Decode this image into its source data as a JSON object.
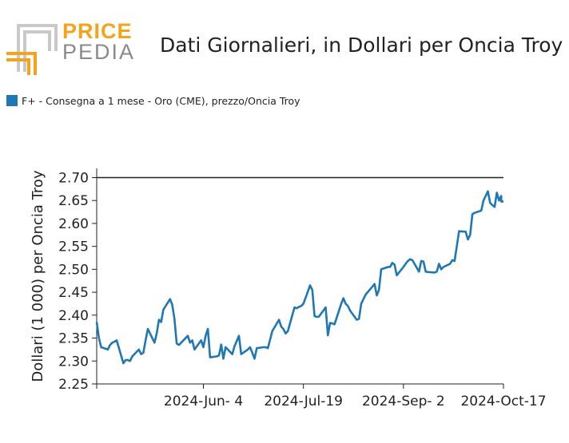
{
  "logo": {
    "line1": "PRICE",
    "line2": "PEDIA"
  },
  "title": "Dati Giornalieri, in Dollari per Oncia Troy",
  "legend": {
    "label": "F+ - Consegna a 1 mese - Oro (CME), prezzo/Oncia Troy",
    "color": "#1f77b4"
  },
  "chart_data": {
    "type": "line",
    "title": "Dati Giornalieri, in Dollari per Oncia Troy",
    "ylabel": "Dollari (1 000) per Oncia Troy",
    "xlabel": "",
    "ylim": [
      2.25,
      2.72
    ],
    "yticks": [
      "2.25",
      "2.30",
      "2.35",
      "2.40",
      "2.45",
      "2.50",
      "2.55",
      "2.60",
      "2.65",
      "2.70"
    ],
    "xlim": [
      "2024-04-17",
      "2024-10-17"
    ],
    "xticks": [
      {
        "date": "2024-06-04",
        "label": "2024-Jun- 4"
      },
      {
        "date": "2024-07-19",
        "label": "2024-Jul-19"
      },
      {
        "date": "2024-09-02",
        "label": "2024-Sep- 2"
      },
      {
        "date": "2024-10-17",
        "label": "2024-Oct-17"
      }
    ],
    "reference_line": {
      "y": 2.7,
      "color": "#222222"
    },
    "grid": false,
    "series": [
      {
        "name": "F+ - Consegna a 1 mese - Oro (CME), prezzo/Oncia Troy",
        "color": "#1f77b4",
        "points": [
          [
            "2024-04-17",
            2.385
          ],
          [
            "2024-04-18",
            2.35
          ],
          [
            "2024-04-19",
            2.33
          ],
          [
            "2024-04-22",
            2.325
          ],
          [
            "2024-04-23",
            2.335
          ],
          [
            "2024-04-24",
            2.34
          ],
          [
            "2024-04-25",
            2.342
          ],
          [
            "2024-04-26",
            2.345
          ],
          [
            "2024-04-29",
            2.295
          ],
          [
            "2024-04-30",
            2.302
          ],
          [
            "2024-05-01",
            2.302
          ],
          [
            "2024-05-02",
            2.3
          ],
          [
            "2024-05-03",
            2.31
          ],
          [
            "2024-05-06",
            2.325
          ],
          [
            "2024-05-07",
            2.315
          ],
          [
            "2024-05-08",
            2.318
          ],
          [
            "2024-05-09",
            2.345
          ],
          [
            "2024-05-10",
            2.37
          ],
          [
            "2024-05-13",
            2.34
          ],
          [
            "2024-05-14",
            2.36
          ],
          [
            "2024-05-15",
            2.39
          ],
          [
            "2024-05-16",
            2.385
          ],
          [
            "2024-05-17",
            2.412
          ],
          [
            "2024-05-20",
            2.435
          ],
          [
            "2024-05-21",
            2.422
          ],
          [
            "2024-05-22",
            2.392
          ],
          [
            "2024-05-23",
            2.338
          ],
          [
            "2024-05-24",
            2.335
          ],
          [
            "2024-05-28",
            2.355
          ],
          [
            "2024-05-29",
            2.34
          ],
          [
            "2024-05-30",
            2.345
          ],
          [
            "2024-05-31",
            2.325
          ],
          [
            "2024-06-03",
            2.345
          ],
          [
            "2024-06-04",
            2.33
          ],
          [
            "2024-06-05",
            2.355
          ],
          [
            "2024-06-06",
            2.37
          ],
          [
            "2024-06-07",
            2.308
          ],
          [
            "2024-06-10",
            2.31
          ],
          [
            "2024-06-11",
            2.312
          ],
          [
            "2024-06-12",
            2.336
          ],
          [
            "2024-06-13",
            2.305
          ],
          [
            "2024-06-14",
            2.33
          ],
          [
            "2024-06-17",
            2.315
          ],
          [
            "2024-06-18",
            2.332
          ],
          [
            "2024-06-20",
            2.355
          ],
          [
            "2024-06-21",
            2.315
          ],
          [
            "2024-06-24",
            2.325
          ],
          [
            "2024-06-25",
            2.33
          ],
          [
            "2024-06-26",
            2.318
          ],
          [
            "2024-06-27",
            2.305
          ],
          [
            "2024-06-28",
            2.328
          ],
          [
            "2024-07-01",
            2.33
          ],
          [
            "2024-07-02",
            2.33
          ],
          [
            "2024-07-03",
            2.328
          ],
          [
            "2024-07-05",
            2.365
          ],
          [
            "2024-07-08",
            2.39
          ],
          [
            "2024-07-09",
            2.375
          ],
          [
            "2024-07-10",
            2.37
          ],
          [
            "2024-07-11",
            2.36
          ],
          [
            "2024-07-12",
            2.365
          ],
          [
            "2024-07-15",
            2.417
          ],
          [
            "2024-07-16",
            2.415
          ],
          [
            "2024-07-17",
            2.418
          ],
          [
            "2024-07-18",
            2.42
          ],
          [
            "2024-07-19",
            2.425
          ],
          [
            "2024-07-22",
            2.465
          ],
          [
            "2024-07-23",
            2.455
          ],
          [
            "2024-07-24",
            2.398
          ],
          [
            "2024-07-25",
            2.396
          ],
          [
            "2024-07-26",
            2.397
          ],
          [
            "2024-07-29",
            2.417
          ],
          [
            "2024-07-30",
            2.356
          ],
          [
            "2024-07-31",
            2.383
          ],
          [
            "2024-08-01",
            2.382
          ],
          [
            "2024-08-02",
            2.38
          ],
          [
            "2024-08-05",
            2.425
          ],
          [
            "2024-08-06",
            2.437
          ],
          [
            "2024-08-07",
            2.425
          ],
          [
            "2024-08-08",
            2.42
          ],
          [
            "2024-08-09",
            2.41
          ],
          [
            "2024-08-12",
            2.39
          ],
          [
            "2024-08-13",
            2.392
          ],
          [
            "2024-08-14",
            2.425
          ],
          [
            "2024-08-15",
            2.435
          ],
          [
            "2024-08-16",
            2.445
          ],
          [
            "2024-08-19",
            2.462
          ],
          [
            "2024-08-20",
            2.468
          ],
          [
            "2024-08-21",
            2.443
          ],
          [
            "2024-08-22",
            2.455
          ],
          [
            "2024-08-23",
            2.5
          ],
          [
            "2024-08-26",
            2.505
          ],
          [
            "2024-08-27",
            2.505
          ],
          [
            "2024-08-28",
            2.514
          ],
          [
            "2024-08-29",
            2.51
          ],
          [
            "2024-08-30",
            2.487
          ],
          [
            "2024-09-02",
            2.505
          ],
          [
            "2024-09-03",
            2.512
          ],
          [
            "2024-09-04",
            2.518
          ],
          [
            "2024-09-05",
            2.522
          ],
          [
            "2024-09-06",
            2.52
          ],
          [
            "2024-09-09",
            2.495
          ],
          [
            "2024-09-10",
            2.518
          ],
          [
            "2024-09-11",
            2.517
          ],
          [
            "2024-09-12",
            2.495
          ],
          [
            "2024-09-13",
            2.494
          ],
          [
            "2024-09-16",
            2.493
          ],
          [
            "2024-09-17",
            2.495
          ],
          [
            "2024-09-18",
            2.512
          ],
          [
            "2024-09-19",
            2.5
          ],
          [
            "2024-09-20",
            2.505
          ],
          [
            "2024-09-23",
            2.512
          ],
          [
            "2024-09-24",
            2.52
          ],
          [
            "2024-09-25",
            2.518
          ],
          [
            "2024-09-26",
            2.55
          ],
          [
            "2024-09-27",
            2.583
          ],
          [
            "2024-09-30",
            2.582
          ],
          [
            "2024-10-01",
            2.565
          ],
          [
            "2024-10-02",
            2.575
          ],
          [
            "2024-10-03",
            2.62
          ],
          [
            "2024-10-04",
            2.623
          ],
          [
            "2024-10-07",
            2.628
          ],
          [
            "2024-10-08",
            2.65
          ],
          [
            "2024-10-09",
            2.66
          ],
          [
            "2024-10-10",
            2.67
          ],
          [
            "2024-10-11",
            2.645
          ],
          [
            "2024-10-12",
            2.64
          ],
          [
            "2024-10-13",
            2.636
          ],
          [
            "2024-10-14",
            2.667
          ],
          [
            "2024-10-15",
            2.65
          ],
          [
            "2024-10-16",
            2.66
          ],
          [
            "2024-10-16",
            2.648
          ],
          [
            "2024-10-17",
            2.648
          ]
        ]
      }
    ]
  }
}
